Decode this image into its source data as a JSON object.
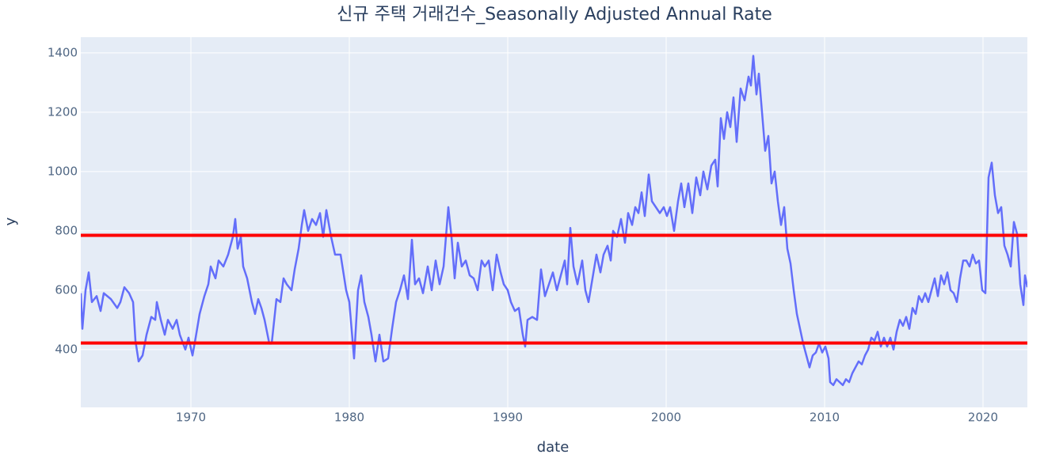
{
  "chart_data": {
    "type": "line",
    "title": "신규 주택 거래건수_Seasonally Adjusted Annual Rate",
    "x_label": "date",
    "y_label": "y",
    "color": "#636efa",
    "grid": true,
    "xlim": [
      1963.05,
      2022.8
    ],
    "xticks": [
      1970,
      1980,
      1990,
      2000,
      2010,
      2020
    ],
    "ylim": [
      205,
      1453
    ],
    "yticks": [
      400,
      600,
      800,
      1000,
      1200,
      1400
    ],
    "hlines": [
      {
        "value": 785,
        "color": "#ff0000"
      },
      {
        "value": 422,
        "color": "#ff0000"
      }
    ],
    "x": [
      1963.05,
      1963.15,
      1963.35,
      1963.55,
      1963.75,
      1964.05,
      1964.3,
      1964.5,
      1964.95,
      1965.35,
      1965.55,
      1965.8,
      1966.1,
      1966.35,
      1966.5,
      1966.7,
      1966.95,
      1967.2,
      1967.5,
      1967.75,
      1967.85,
      1968.1,
      1968.35,
      1968.55,
      1968.85,
      1969.1,
      1969.3,
      1969.65,
      1969.85,
      1970.1,
      1970.3,
      1970.55,
      1970.85,
      1971.1,
      1971.25,
      1971.55,
      1971.75,
      1972.05,
      1972.35,
      1972.65,
      1972.8,
      1972.95,
      1973.15,
      1973.3,
      1973.55,
      1973.85,
      1974.05,
      1974.25,
      1974.45,
      1974.65,
      1974.95,
      1975.1,
      1975.4,
      1975.65,
      1975.85,
      1976.05,
      1976.35,
      1976.55,
      1976.8,
      1977.0,
      1977.15,
      1977.4,
      1977.65,
      1977.9,
      1978.15,
      1978.35,
      1978.55,
      1978.85,
      1979.1,
      1979.45,
      1979.8,
      1980.0,
      1980.3,
      1980.55,
      1980.75,
      1980.95,
      1981.2,
      1981.4,
      1981.65,
      1981.9,
      1982.15,
      1982.45,
      1982.7,
      1982.95,
      1983.2,
      1983.45,
      1983.7,
      1983.95,
      1984.15,
      1984.4,
      1984.65,
      1984.95,
      1985.2,
      1985.45,
      1985.7,
      1985.95,
      1986.25,
      1986.45,
      1986.65,
      1986.85,
      1987.1,
      1987.35,
      1987.6,
      1987.85,
      1988.1,
      1988.35,
      1988.55,
      1988.8,
      1989.05,
      1989.3,
      1989.55,
      1989.75,
      1990.0,
      1990.2,
      1990.45,
      1990.7,
      1990.95,
      1991.1,
      1991.25,
      1991.55,
      1991.85,
      1992.1,
      1992.35,
      1992.6,
      1992.85,
      1993.1,
      1993.35,
      1993.6,
      1993.75,
      1993.95,
      1994.15,
      1994.4,
      1994.7,
      1994.9,
      1995.1,
      1995.35,
      1995.6,
      1995.85,
      1996.05,
      1996.3,
      1996.5,
      1996.65,
      1996.9,
      1997.15,
      1997.4,
      1997.6,
      1997.85,
      1998.05,
      1998.25,
      1998.45,
      1998.65,
      1998.9,
      1999.1,
      1999.35,
      1999.6,
      1999.85,
      2000.05,
      2000.25,
      2000.5,
      2000.75,
      2000.95,
      2001.15,
      2001.4,
      2001.65,
      2001.9,
      2002.15,
      2002.35,
      2002.6,
      2002.85,
      2003.1,
      2003.25,
      2003.45,
      2003.65,
      2003.85,
      2004.05,
      2004.25,
      2004.45,
      2004.7,
      2004.95,
      2005.2,
      2005.35,
      2005.5,
      2005.7,
      2005.85,
      2006.05,
      2006.25,
      2006.45,
      2006.65,
      2006.85,
      2007.05,
      2007.25,
      2007.45,
      2007.65,
      2007.85,
      2008.05,
      2008.25,
      2008.45,
      2008.65,
      2008.85,
      2009.05,
      2009.25,
      2009.45,
      2009.65,
      2009.85,
      2010.05,
      2010.25,
      2010.35,
      2010.55,
      2010.75,
      2010.95,
      2011.15,
      2011.35,
      2011.55,
      2011.75,
      2011.95,
      2012.15,
      2012.35,
      2012.55,
      2012.75,
      2012.95,
      2013.15,
      2013.35,
      2013.55,
      2013.75,
      2013.95,
      2014.15,
      2014.35,
      2014.55,
      2014.75,
      2014.95,
      2015.15,
      2015.35,
      2015.55,
      2015.75,
      2015.95,
      2016.15,
      2016.35,
      2016.55,
      2016.75,
      2016.95,
      2017.15,
      2017.35,
      2017.55,
      2017.75,
      2017.95,
      2018.15,
      2018.35,
      2018.55,
      2018.75,
      2018.95,
      2019.15,
      2019.35,
      2019.55,
      2019.75,
      2019.95,
      2020.15,
      2020.35,
      2020.55,
      2020.75,
      2020.95,
      2021.15,
      2021.35,
      2021.55,
      2021.75,
      2021.95,
      2022.15,
      2022.35,
      2022.55,
      2022.65,
      2022.8
    ],
    "values": [
      590,
      470,
      600,
      660,
      560,
      580,
      530,
      590,
      570,
      540,
      560,
      610,
      590,
      560,
      430,
      360,
      380,
      450,
      510,
      500,
      560,
      500,
      450,
      500,
      470,
      500,
      450,
      400,
      440,
      380,
      440,
      520,
      580,
      620,
      680,
      640,
      700,
      680,
      720,
      780,
      840,
      740,
      780,
      680,
      640,
      560,
      520,
      570,
      540,
      500,
      420,
      420,
      570,
      560,
      640,
      620,
      600,
      670,
      740,
      820,
      870,
      800,
      840,
      820,
      860,
      780,
      870,
      780,
      720,
      720,
      600,
      560,
      370,
      600,
      650,
      560,
      510,
      450,
      360,
      450,
      360,
      370,
      470,
      560,
      600,
      650,
      570,
      770,
      620,
      640,
      590,
      680,
      600,
      700,
      620,
      680,
      880,
      780,
      640,
      760,
      680,
      700,
      650,
      640,
      600,
      700,
      680,
      700,
      600,
      720,
      660,
      620,
      600,
      560,
      530,
      540,
      450,
      410,
      500,
      510,
      500,
      670,
      580,
      620,
      660,
      600,
      650,
      700,
      620,
      810,
      680,
      620,
      700,
      600,
      560,
      640,
      720,
      660,
      720,
      750,
      700,
      800,
      780,
      840,
      760,
      860,
      820,
      880,
      860,
      930,
      850,
      990,
      900,
      880,
      860,
      880,
      850,
      880,
      800,
      900,
      960,
      880,
      960,
      860,
      980,
      920,
      1000,
      940,
      1020,
      1040,
      950,
      1180,
      1110,
      1200,
      1150,
      1250,
      1100,
      1280,
      1240,
      1320,
      1290,
      1390,
      1260,
      1330,
      1200,
      1070,
      1120,
      960,
      1000,
      900,
      820,
      880,
      740,
      690,
      600,
      520,
      470,
      420,
      380,
      340,
      380,
      390,
      420,
      390,
      410,
      370,
      290,
      280,
      300,
      290,
      280,
      300,
      290,
      320,
      340,
      360,
      350,
      380,
      400,
      440,
      430,
      460,
      410,
      440,
      410,
      440,
      400,
      460,
      500,
      480,
      510,
      470,
      540,
      520,
      580,
      560,
      590,
      560,
      600,
      640,
      580,
      650,
      620,
      660,
      600,
      590,
      560,
      640,
      700,
      700,
      680,
      720,
      690,
      700,
      600,
      590,
      980,
      1030,
      920,
      860,
      880,
      750,
      720,
      680,
      830,
      790,
      620,
      550,
      650,
      610
    ]
  }
}
